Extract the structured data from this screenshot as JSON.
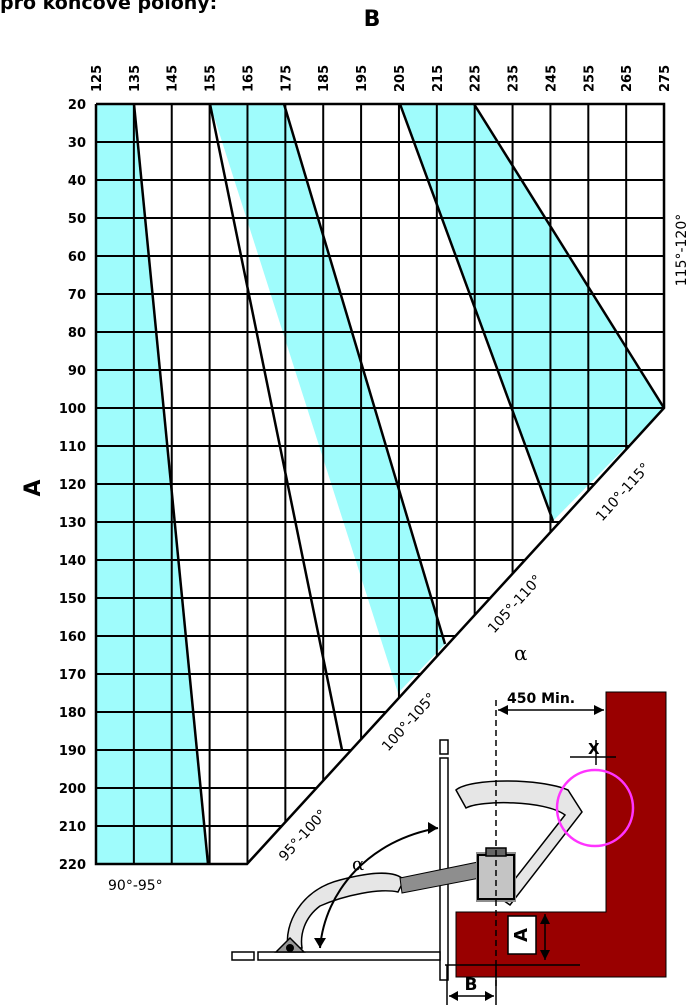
{
  "caption": "pro koncové polohy:",
  "axes": {
    "top_label": "B",
    "left_label": "A",
    "b_ticks": [
      "125",
      "135",
      "145",
      "155",
      "165",
      "175",
      "185",
      "195",
      "205",
      "215",
      "225",
      "235",
      "245",
      "255",
      "265",
      "275"
    ],
    "a_ticks": [
      "20",
      "30",
      "40",
      "50",
      "60",
      "70",
      "80",
      "90",
      "100",
      "110",
      "120",
      "130",
      "140",
      "150",
      "160",
      "170",
      "180",
      "190",
      "200",
      "210",
      "220"
    ]
  },
  "bands": [
    {
      "label": "90°-95°"
    },
    {
      "label": "95°-100°"
    },
    {
      "label": "100°-105°"
    },
    {
      "label": "105°-110°"
    },
    {
      "label": "110°-115°"
    },
    {
      "label": "115°-120°"
    }
  ],
  "detail": {
    "alpha_main": "α",
    "alpha_small": "α",
    "min_dimension": "450 Min.",
    "x_label": "X",
    "a_label": "A",
    "b_label": "B"
  },
  "colors": {
    "band_fill": "#9ffcfc",
    "wall": "#990000",
    "circle": "#ff33ff",
    "arm": "#e6e6e6",
    "cylinder": "#c4c4c4",
    "shadow": "#8e8e8e"
  }
}
